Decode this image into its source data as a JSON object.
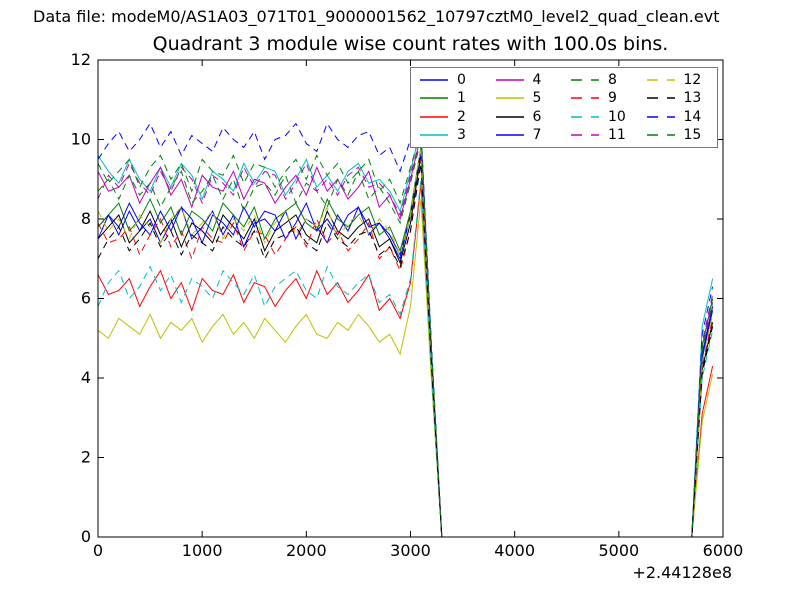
{
  "figure": {
    "datafile_label": "Data file: modeM0/AS1A03_071T01_9000001562_10797cztM0_level2_quad_clean.evt"
  },
  "chart_data": {
    "type": "line",
    "title": "Quadrant 3 module wise count rates with 100.0s bins.",
    "xlabel": "",
    "ylabel": "",
    "grid": false,
    "legend": {
      "position": "upper right",
      "columns": 4,
      "frame_color": "#787878"
    },
    "x_axis": {
      "lim": [
        0,
        6000
      ],
      "ticks": [
        0,
        1000,
        2000,
        3000,
        4000,
        5000,
        6000
      ],
      "offset_text": "+2.44128e8"
    },
    "y_axis": {
      "lim": [
        0,
        12
      ],
      "ticks": [
        0,
        2,
        4,
        6,
        8,
        10,
        12
      ]
    },
    "x_start": 0,
    "x_step": 100,
    "series": [
      {
        "name": "0",
        "color": "#0000ff",
        "linestyle": "solid",
        "values": [
          7.8,
          8.1,
          7.6,
          8.2,
          7.7,
          8.0,
          7.4,
          7.9,
          8.3,
          7.5,
          7.8,
          8.2,
          7.6,
          8.1,
          7.3,
          7.9,
          8.0,
          7.7,
          8.2,
          7.5,
          8.0,
          7.8,
          7.4,
          8.1,
          7.7,
          8.3,
          7.6,
          7.9,
          7.5,
          7.0,
          8.1,
          9.7,
          4.5,
          0,
          0,
          0,
          0,
          0,
          0,
          0,
          0,
          0,
          0,
          0,
          0,
          0,
          0,
          0,
          0,
          0,
          0,
          0,
          0,
          0,
          0,
          0,
          0,
          0,
          4.5,
          5.7
        ]
      },
      {
        "name": "1",
        "color": "#008000",
        "linestyle": "solid",
        "values": [
          7.8,
          8.1,
          8.4,
          7.7,
          8.0,
          8.5,
          7.9,
          8.3,
          7.6,
          8.2,
          8.0,
          7.7,
          8.4,
          8.1,
          7.8,
          8.3,
          7.5,
          8.0,
          8.2,
          8.4,
          7.9,
          7.7,
          8.5,
          8.0,
          7.8,
          8.1,
          8.3,
          7.6,
          7.8,
          7.2,
          8.2,
          9.8,
          4.6,
          0,
          0,
          0,
          0,
          0,
          0,
          0,
          0,
          0,
          0,
          0,
          0,
          0,
          0,
          0,
          0,
          0,
          0,
          0,
          0,
          0,
          0,
          0,
          0,
          0,
          4.6,
          5.8
        ]
      },
      {
        "name": "2",
        "color": "#ff0000",
        "linestyle": "solid",
        "values": [
          6.6,
          6.1,
          6.2,
          6.5,
          5.8,
          6.3,
          6.7,
          6.0,
          6.4,
          5.7,
          6.5,
          6.2,
          6.1,
          6.6,
          5.9,
          6.4,
          6.3,
          5.8,
          6.2,
          6.5,
          6.0,
          6.7,
          6.1,
          6.4,
          5.9,
          6.2,
          6.6,
          5.7,
          6.0,
          5.5,
          6.4,
          8.9,
          4.2,
          0,
          0,
          0,
          0,
          0,
          0,
          0,
          0,
          0,
          0,
          0,
          0,
          0,
          0,
          0,
          0,
          0,
          0,
          0,
          0,
          0,
          0,
          0,
          0,
          0,
          3.1,
          4.3
        ]
      },
      {
        "name": "3",
        "color": "#00bfbf",
        "linestyle": "solid",
        "values": [
          9.6,
          9.2,
          8.9,
          9.5,
          9.0,
          8.7,
          9.3,
          8.8,
          9.4,
          9.1,
          8.5,
          9.2,
          9.0,
          8.7,
          9.4,
          8.9,
          9.3,
          9.2,
          8.6,
          9.0,
          9.5,
          8.8,
          9.1,
          8.7,
          9.2,
          9.4,
          8.9,
          9.0,
          8.7,
          8.2,
          9.2,
          10.3,
          4.8,
          0,
          0,
          0,
          0,
          0,
          0,
          0,
          0,
          0,
          0,
          0,
          0,
          0,
          0,
          0,
          0,
          0,
          0,
          0,
          0,
          0,
          0,
          0,
          0,
          0,
          5.3,
          6.5
        ]
      },
      {
        "name": "4",
        "color": "#bf00bf",
        "linestyle": "solid",
        "values": [
          9.2,
          8.7,
          8.8,
          9.1,
          8.4,
          8.9,
          9.3,
          8.6,
          9.0,
          8.3,
          9.1,
          8.8,
          8.7,
          9.2,
          8.5,
          9.0,
          8.9,
          8.4,
          8.8,
          9.1,
          8.6,
          9.3,
          8.7,
          9.0,
          8.5,
          8.8,
          9.2,
          8.3,
          8.6,
          8.0,
          9.0,
          10.1,
          4.7,
          0,
          0,
          0,
          0,
          0,
          0,
          0,
          0,
          0,
          0,
          0,
          0,
          0,
          0,
          0,
          0,
          0,
          0,
          0,
          0,
          0,
          0,
          0,
          0,
          0,
          4.8,
          6.0
        ]
      },
      {
        "name": "5",
        "color": "#bfbf00",
        "linestyle": "solid",
        "values": [
          5.2,
          5.0,
          5.5,
          5.3,
          5.1,
          5.6,
          5.0,
          5.4,
          5.2,
          5.5,
          4.9,
          5.3,
          5.6,
          5.1,
          5.4,
          5.0,
          5.5,
          5.2,
          4.9,
          5.3,
          5.6,
          5.1,
          5.0,
          5.4,
          5.2,
          5.6,
          5.3,
          4.9,
          5.1,
          4.6,
          5.8,
          8.5,
          4.0,
          0,
          0,
          0,
          0,
          0,
          0,
          0,
          0,
          0,
          0,
          0,
          0,
          0,
          0,
          0,
          0,
          0,
          0,
          0,
          0,
          0,
          0,
          0,
          0,
          0,
          2.9,
          4.1
        ]
      },
      {
        "name": "6",
        "color": "#000000",
        "linestyle": "solid",
        "values": [
          7.5,
          7.8,
          8.1,
          7.4,
          7.7,
          8.2,
          7.6,
          8.0,
          7.3,
          7.9,
          7.7,
          7.4,
          8.1,
          7.8,
          7.5,
          8.0,
          7.2,
          7.7,
          7.9,
          8.1,
          7.6,
          7.4,
          8.2,
          7.7,
          7.5,
          7.8,
          8.0,
          7.3,
          7.5,
          6.9,
          7.9,
          9.6,
          4.4,
          0,
          0,
          0,
          0,
          0,
          0,
          0,
          0,
          0,
          0,
          0,
          0,
          0,
          0,
          0,
          0,
          0,
          0,
          0,
          0,
          0,
          0,
          0,
          0,
          0,
          4.2,
          5.4
        ]
      },
      {
        "name": "7",
        "color": "#0000ff",
        "linestyle": "solid",
        "values": [
          7.5,
          8.1,
          7.8,
          8.4,
          7.9,
          7.6,
          8.2,
          7.7,
          8.3,
          8.0,
          7.4,
          8.1,
          7.9,
          7.6,
          8.3,
          7.8,
          8.2,
          8.1,
          7.5,
          7.9,
          8.4,
          7.7,
          8.0,
          7.6,
          8.1,
          8.3,
          7.8,
          7.9,
          7.6,
          7.1,
          8.1,
          9.7,
          4.5,
          0,
          0,
          0,
          0,
          0,
          0,
          0,
          0,
          0,
          0,
          0,
          0,
          0,
          0,
          0,
          0,
          0,
          0,
          0,
          0,
          0,
          0,
          0,
          0,
          0,
          4.6,
          5.8
        ]
      },
      {
        "name": "8",
        "color": "#008000",
        "linestyle": "dashed",
        "values": [
          8.7,
          9.0,
          8.5,
          9.1,
          8.6,
          8.9,
          8.3,
          8.8,
          9.2,
          8.4,
          8.7,
          9.1,
          8.5,
          9.0,
          8.2,
          8.8,
          8.9,
          8.6,
          9.1,
          8.4,
          8.9,
          8.7,
          8.3,
          9.0,
          8.6,
          9.2,
          8.5,
          8.8,
          8.4,
          7.9,
          8.9,
          10.0,
          4.7,
          0,
          0,
          0,
          0,
          0,
          0,
          0,
          0,
          0,
          0,
          0,
          0,
          0,
          0,
          0,
          0,
          0,
          0,
          0,
          0,
          0,
          0,
          0,
          0,
          0,
          4.7,
          5.9
        ]
      },
      {
        "name": "9",
        "color": "#ff0000",
        "linestyle": "dashed",
        "values": [
          7.9,
          7.4,
          7.5,
          7.8,
          7.1,
          7.6,
          8.0,
          7.3,
          7.7,
          7.0,
          7.8,
          7.5,
          7.4,
          7.9,
          7.2,
          7.7,
          7.6,
          7.1,
          7.5,
          7.8,
          7.3,
          8.0,
          7.4,
          7.7,
          7.2,
          7.5,
          7.9,
          7.0,
          7.3,
          6.7,
          7.7,
          9.5,
          4.4,
          0,
          0,
          0,
          0,
          0,
          0,
          0,
          0,
          0,
          0,
          0,
          0,
          0,
          0,
          0,
          0,
          0,
          0,
          0,
          0,
          0,
          0,
          0,
          0,
          0,
          4.3,
          5.5
        ]
      },
      {
        "name": "10",
        "color": "#00bfbf",
        "linestyle": "dashed",
        "values": [
          5.8,
          6.4,
          6.7,
          6.0,
          6.3,
          6.8,
          6.2,
          6.6,
          5.9,
          6.5,
          6.3,
          6.0,
          6.7,
          6.4,
          6.1,
          6.6,
          5.8,
          6.3,
          6.5,
          6.7,
          6.2,
          6.0,
          6.8,
          6.3,
          6.1,
          6.4,
          6.6,
          5.9,
          6.1,
          5.6,
          6.5,
          9.0,
          4.2,
          0,
          0,
          0,
          0,
          0,
          0,
          0,
          0,
          0,
          0,
          0,
          0,
          0,
          0,
          0,
          0,
          0,
          0,
          0,
          0,
          0,
          0,
          0,
          0,
          0,
          4.0,
          5.2
        ]
      },
      {
        "name": "11",
        "color": "#bf00bf",
        "linestyle": "dashed",
        "values": [
          8.5,
          9.1,
          8.8,
          9.4,
          8.9,
          8.6,
          9.2,
          8.7,
          9.3,
          9.0,
          8.4,
          9.1,
          8.9,
          8.6,
          9.3,
          8.8,
          9.2,
          9.1,
          8.5,
          8.9,
          9.4,
          8.7,
          9.0,
          8.6,
          9.1,
          9.3,
          8.8,
          8.9,
          8.6,
          8.1,
          9.1,
          10.1,
          4.8,
          0,
          0,
          0,
          0,
          0,
          0,
          0,
          0,
          0,
          0,
          0,
          0,
          0,
          0,
          0,
          0,
          0,
          0,
          0,
          0,
          0,
          0,
          0,
          0,
          0,
          4.9,
          6.1
        ]
      },
      {
        "name": "12",
        "color": "#bfbf00",
        "linestyle": "dashed",
        "values": [
          8.2,
          7.7,
          8.0,
          7.5,
          8.1,
          7.8,
          7.4,
          8.0,
          8.3,
          7.6,
          7.9,
          8.2,
          7.5,
          8.0,
          7.7,
          8.1,
          7.4,
          7.9,
          8.2,
          7.6,
          8.0,
          7.8,
          8.3,
          7.5,
          7.9,
          8.1,
          7.6,
          8.0,
          7.7,
          7.1,
          8.1,
          9.8,
          4.6,
          0,
          0,
          0,
          0,
          0,
          0,
          0,
          0,
          0,
          0,
          0,
          0,
          0,
          0,
          0,
          0,
          0,
          0,
          0,
          0,
          0,
          0,
          0,
          0,
          0,
          4.4,
          5.6
        ]
      },
      {
        "name": "13",
        "color": "#000000",
        "linestyle": "dashed",
        "values": [
          7.0,
          7.5,
          7.8,
          7.2,
          7.5,
          7.9,
          7.3,
          7.7,
          7.1,
          7.6,
          7.4,
          7.2,
          7.8,
          7.5,
          7.3,
          7.7,
          7.0,
          7.5,
          7.6,
          7.8,
          7.4,
          7.2,
          7.9,
          7.5,
          7.3,
          7.6,
          7.7,
          7.1,
          7.3,
          6.8,
          7.7,
          9.4,
          4.4,
          0,
          0,
          0,
          0,
          0,
          0,
          0,
          0,
          0,
          0,
          0,
          0,
          0,
          0,
          0,
          0,
          0,
          0,
          0,
          0,
          0,
          0,
          0,
          0,
          0,
          4.1,
          5.3
        ]
      },
      {
        "name": "14",
        "color": "#0000ff",
        "linestyle": "dashed",
        "values": [
          9.5,
          9.9,
          10.2,
          9.7,
          10.0,
          10.4,
          9.8,
          10.2,
          9.6,
          10.1,
          9.9,
          9.7,
          10.3,
          10.0,
          9.8,
          10.2,
          9.5,
          10.0,
          10.1,
          10.4,
          9.9,
          9.7,
          10.4,
          10.0,
          9.8,
          10.1,
          10.2,
          9.6,
          9.8,
          9.2,
          10.0,
          10.3,
          4.9,
          0,
          0,
          0,
          0,
          0,
          0,
          0,
          0,
          0,
          0,
          0,
          0,
          0,
          0,
          0,
          0,
          0,
          0,
          0,
          0,
          0,
          0,
          0,
          0,
          0,
          5.1,
          6.3
        ]
      },
      {
        "name": "15",
        "color": "#008000",
        "linestyle": "dashed",
        "values": [
          9.4,
          8.9,
          9.2,
          9.5,
          8.8,
          9.3,
          9.6,
          9.0,
          9.4,
          8.7,
          9.5,
          9.2,
          9.1,
          9.6,
          8.9,
          9.4,
          9.3,
          8.8,
          9.2,
          9.5,
          9.0,
          9.6,
          9.1,
          9.4,
          8.9,
          9.2,
          9.5,
          8.7,
          9.0,
          8.4,
          9.3,
          10.2,
          4.8,
          0,
          0,
          0,
          0,
          0,
          0,
          0,
          0,
          0,
          0,
          0,
          0,
          0,
          0,
          0,
          0,
          0,
          0,
          0,
          0,
          0,
          0,
          0,
          0,
          0,
          4.8,
          6.0
        ]
      }
    ]
  }
}
